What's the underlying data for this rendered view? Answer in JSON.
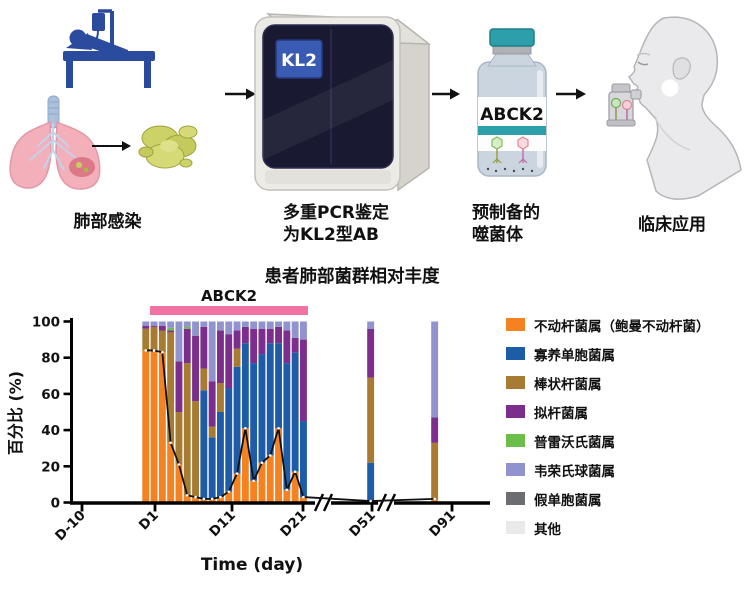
{
  "workflow": {
    "step1_label": "肺部感染",
    "step2_label_line1": "多重PCR鉴定",
    "step2_label_line2": "为KL2型AB",
    "machine_screen_text": "KL2",
    "step3_label_line1": "预制备的",
    "step3_label_line2": "噬菌体",
    "vial_label": "ABCK2",
    "step4_label": "临床应用"
  },
  "chart_data": {
    "type": "bar",
    "subtype": "stacked-percent-with-line-overlay",
    "title": "患者肺部菌群相对丰度",
    "treatment_label": "ABCK2",
    "treatment_bar_color": "#F173A4",
    "ylabel": "百分比 (%)",
    "xlabel": "Time (day)",
    "ylim": [
      0,
      100
    ],
    "yticks": [
      0,
      20,
      40,
      60,
      80,
      100
    ],
    "xticks": [
      "D-10",
      "D1",
      "D11",
      "D21",
      "D51",
      "D91"
    ],
    "axis_breaks": [
      "between D21 and D51",
      "between D51 and D91"
    ],
    "legend_position": "right",
    "legend": [
      {
        "key": "acinetobacter",
        "name": "不动杆菌属（鲍曼不动杆菌）",
        "color": "#F58220"
      },
      {
        "key": "stenotrophomonas",
        "name": "寡养单胞菌属",
        "color": "#1E5CA8"
      },
      {
        "key": "corynebacterium",
        "name": "棒状杆菌属",
        "color": "#A87B32"
      },
      {
        "key": "bacteroides",
        "name": "拟杆菌属",
        "color": "#7B2E8B"
      },
      {
        "key": "prevotella",
        "name": "普雷沃氏菌属",
        "color": "#6CBE4A"
      },
      {
        "key": "veillonella",
        "name": "韦荣氏球菌属",
        "color": "#9093CE"
      },
      {
        "key": "pseudomonas",
        "name": "假单胞菌属",
        "color": "#6C6D70"
      },
      {
        "key": "other",
        "name": "其他",
        "color": "#E9E9EA"
      }
    ],
    "series_order": [
      "acinetobacter",
      "stenotrophomonas",
      "corynebacterium",
      "bacteroides",
      "prevotella",
      "veillonella",
      "pseudomonas",
      "other"
    ],
    "bars_note": "20 consecutive daily bars spanning treatment window D1-D21; values are percent per taxon in series_order",
    "bars": [
      [
        84,
        0,
        12,
        1.5,
        0,
        2.5,
        0,
        0
      ],
      [
        84,
        0,
        13,
        0.5,
        0,
        2.5,
        0,
        0
      ],
      [
        83,
        0,
        12,
        2.5,
        0,
        2.5,
        0,
        0
      ],
      [
        33,
        0,
        61,
        1.0,
        1.5,
        3.5,
        0,
        0
      ],
      [
        21,
        0,
        29,
        28,
        0,
        22,
        0,
        0
      ],
      [
        4,
        0,
        73,
        19,
        1,
        3,
        0,
        0
      ],
      [
        3,
        0,
        53,
        36,
        0,
        8,
        0,
        0
      ],
      [
        2,
        60,
        12,
        23,
        0,
        3,
        0,
        0
      ],
      [
        2,
        34,
        6,
        25,
        0,
        33,
        0,
        0
      ],
      [
        3,
        47,
        16,
        29,
        0,
        5,
        0,
        0
      ],
      [
        6,
        57,
        0,
        30,
        0,
        7,
        0,
        0
      ],
      [
        16,
        59,
        10,
        10,
        0,
        5,
        0,
        0
      ],
      [
        41,
        47,
        0,
        9,
        0,
        3,
        0,
        0
      ],
      [
        12,
        65,
        0,
        19,
        0,
        4,
        0,
        0
      ],
      [
        22,
        60,
        0,
        14,
        0,
        4,
        0,
        0
      ],
      [
        26,
        62,
        0,
        8,
        0,
        4,
        0,
        0
      ],
      [
        41,
        47,
        0,
        9,
        0,
        3,
        0,
        0
      ],
      [
        7,
        70,
        0,
        18,
        0,
        5,
        0,
        0
      ],
      [
        17,
        66,
        0,
        8,
        0,
        9,
        0,
        0
      ],
      [
        3,
        42,
        0,
        45,
        0,
        10,
        0,
        0
      ]
    ],
    "isolated_bars": [
      {
        "tick": "D51",
        "segments": [
          1,
          21,
          47,
          27,
          0,
          4,
          0,
          0
        ]
      },
      {
        "tick": "D91",
        "segments": [
          1.5,
          0,
          31.5,
          14,
          0,
          53,
          0,
          0
        ]
      }
    ],
    "line": {
      "name": "不动杆菌属相对丰度趋势线",
      "color": "#111111",
      "values": [
        84,
        84,
        83,
        33,
        21,
        4,
        3,
        2,
        2,
        3,
        6,
        16,
        41,
        12,
        22,
        26,
        41,
        7,
        17,
        3
      ],
      "extra_points": [
        {
          "tick": "D51",
          "value": 0.8
        },
        {
          "tick": "D91",
          "value": 2
        }
      ]
    }
  }
}
